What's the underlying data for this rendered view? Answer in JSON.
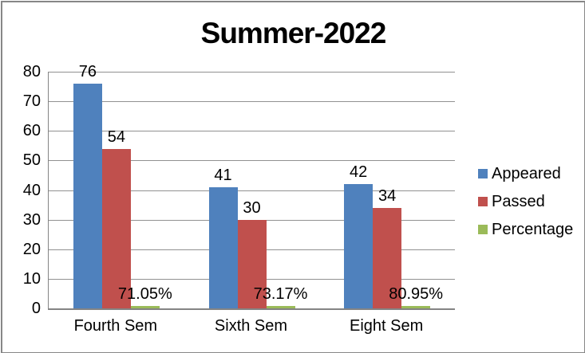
{
  "frame": {
    "background": "#ffffff",
    "border_color": "#878787"
  },
  "chart_data": {
    "type": "bar",
    "title": "Summer-2022",
    "categories": [
      "Fourth Sem",
      "Sixth Sem",
      "Eight Sem"
    ],
    "series": [
      {
        "name": "Appeared",
        "color": "#4F81BD",
        "values": [
          76,
          41,
          42
        ],
        "labels": [
          "76",
          "41",
          "42"
        ]
      },
      {
        "name": "Passed",
        "color": "#C0504D",
        "values": [
          54,
          30,
          34
        ],
        "labels": [
          "54",
          "30",
          "34"
        ]
      },
      {
        "name": "Percentage",
        "color": "#9BBB59",
        "values": [
          0.7105,
          0.7317,
          0.8095
        ],
        "labels": [
          "71.05%",
          "73.17%",
          "80.95%"
        ]
      }
    ],
    "ylim": [
      0,
      80
    ],
    "ytick_step": 10,
    "yticks": [
      "0",
      "10",
      "20",
      "30",
      "40",
      "50",
      "60",
      "70",
      "80"
    ],
    "grid": true,
    "gridline_color": "#919191",
    "axis_color": "#848484",
    "text_color": "#000000",
    "legend_position": "right"
  }
}
